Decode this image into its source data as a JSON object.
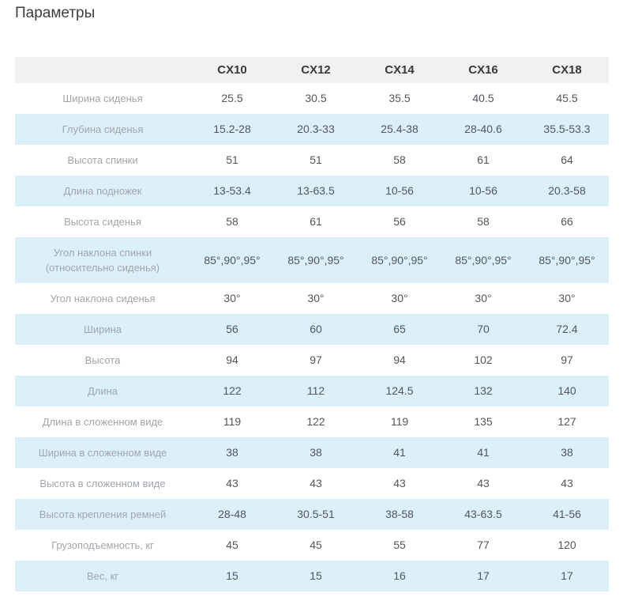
{
  "page": {
    "title": "Параметры"
  },
  "table": {
    "header": {
      "param_col": "",
      "columns": [
        "CX10",
        "CX12",
        "CX14",
        "CX16",
        "CX18"
      ]
    },
    "rows": [
      {
        "label": "Ширина сиденья",
        "values": [
          "25.5",
          "30.5",
          "35.5",
          "40.5",
          "45.5"
        ]
      },
      {
        "label": "Глубина сиденья",
        "values": [
          "15.2-28",
          "20.3-33",
          "25.4-38",
          "28-40.6",
          "35.5-53.3"
        ]
      },
      {
        "label": "Высота спинки",
        "values": [
          "51",
          "51",
          "58",
          "61",
          "64"
        ]
      },
      {
        "label": "Длина подножек",
        "values": [
          "13-53.4",
          "13-63.5",
          "10-56",
          "10-56",
          "20.3-58"
        ]
      },
      {
        "label": "Высота сиденья",
        "values": [
          "58",
          "61",
          "56",
          "58",
          "66"
        ]
      },
      {
        "label": "Угол наклона спинки (относительно сиденья)",
        "values": [
          "85°,90°,95°",
          "85°,90°,95°",
          "85°,90°,95°",
          "85°,90°,95°",
          "85°,90°,95°"
        ]
      },
      {
        "label": "Угол наклона сиденья",
        "values": [
          "30°",
          "30°",
          "30°",
          "30°",
          "30°"
        ]
      },
      {
        "label": "Ширина",
        "values": [
          "56",
          "60",
          "65",
          "70",
          "72.4"
        ]
      },
      {
        "label": "Высота",
        "values": [
          "94",
          "97",
          "94",
          "102",
          "97"
        ]
      },
      {
        "label": "Длина",
        "values": [
          "122",
          "112",
          "124.5",
          "132",
          "140"
        ]
      },
      {
        "label": "Длина в сложенном виде",
        "values": [
          "119",
          "122",
          "119",
          "135",
          "127"
        ]
      },
      {
        "label": "Ширина в сложенном виде",
        "values": [
          "38",
          "38",
          "41",
          "41",
          "38"
        ]
      },
      {
        "label": "Высота в сложенном виде",
        "values": [
          "43",
          "43",
          "43",
          "43",
          "43"
        ]
      },
      {
        "label": "Высота крепления ремней",
        "values": [
          "28-48",
          "30.5-51",
          "38-58",
          "43-63.5",
          "41-56"
        ]
      },
      {
        "label": "Грузоподъемность, кг",
        "values": [
          "45",
          "45",
          "55",
          "77",
          "120"
        ]
      },
      {
        "label": "Вес, кг",
        "values": [
          "15",
          "15",
          "16",
          "17",
          "17"
        ]
      }
    ],
    "colors": {
      "header_bg": "#f1f1f1",
      "row_alt_bg": "#dcf0fa",
      "row_bg": "#ffffff",
      "label_text": "#a0a5aa",
      "value_text": "#51565b",
      "header_text": "#393939",
      "title_text": "#3e3e3e"
    }
  }
}
